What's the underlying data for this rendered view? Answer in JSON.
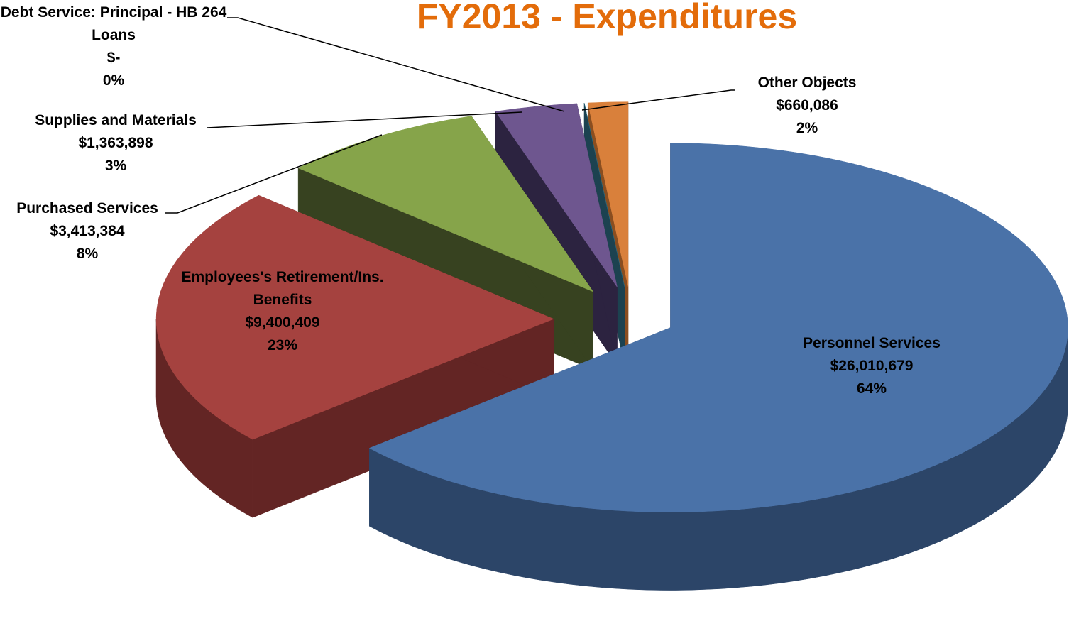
{
  "chart_data": {
    "type": "pie3d",
    "title": "FY2013 - Expenditures",
    "categories": [
      "Personnel Services",
      "Employees's Retirement/Ins. Benefits",
      "Purchased Services",
      "Supplies and Materials",
      "Debt Service:  Principal - HB 264 Loans",
      "Other Objects"
    ],
    "values": [
      26010679,
      9400409,
      3413384,
      1363898,
      0,
      660086
    ],
    "value_labels": [
      "$26,010,679",
      "$9,400,409",
      "$3,413,384",
      "$1,363,898",
      "$-",
      "$660,086"
    ],
    "percent_labels": [
      "64%",
      "23%",
      "8%",
      "3%",
      "0%",
      "2%"
    ],
    "colors": [
      "#4a72a8",
      "#a5423f",
      "#86a44a",
      "#6e568f",
      "#2c6b80",
      "#d9803b"
    ],
    "side_colors": [
      "#2c4568",
      "#632524",
      "#374220",
      "#2c2340",
      "#1c4250",
      "#8a4e20"
    ]
  }
}
